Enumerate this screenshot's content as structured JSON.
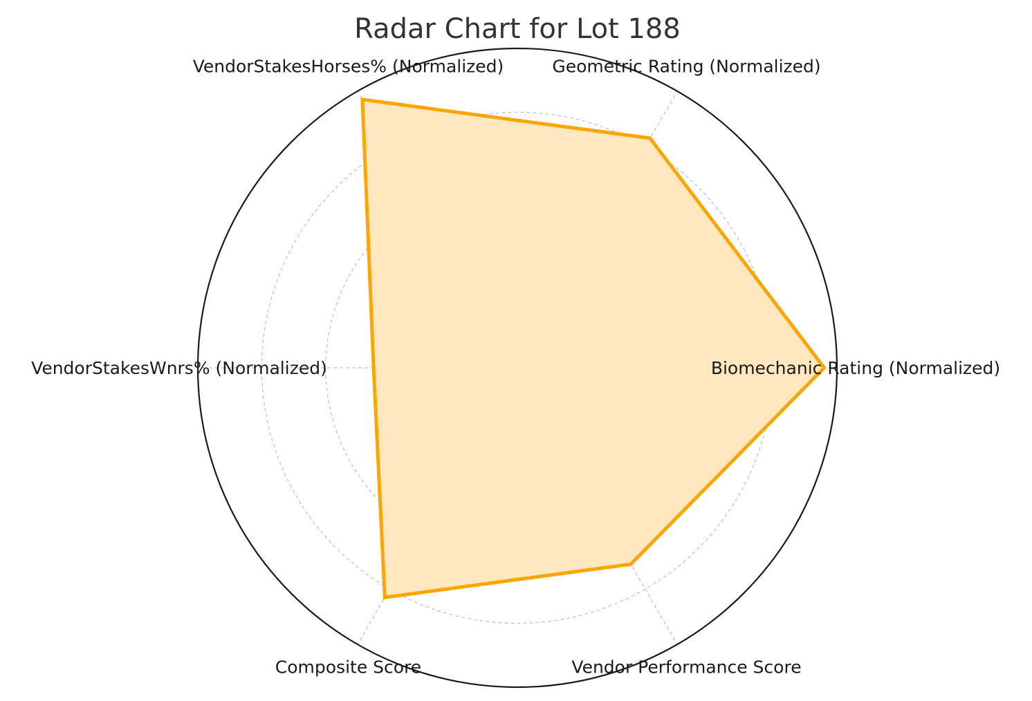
{
  "chart_data": {
    "type": "radar",
    "title": "Radar Chart for Lot 188",
    "axes": [
      "Biomechanic Rating (Normalized)",
      "Geometric Rating (Normalized)",
      "VendorStakesHorses% (Normalized)",
      "VendorStakesWnrs% (Normalized)",
      "Composite Score",
      "Vendor Performance Score"
    ],
    "series": [
      {
        "values": [
          0.96,
          0.83,
          0.97,
          0.45,
          0.83,
          0.71
        ],
        "color": "#FFA500",
        "fill_color": "#FFE7BF"
      }
    ],
    "rlim": [
      0,
      1
    ],
    "grid_rings": [
      0.2,
      0.4,
      0.6,
      0.8
    ],
    "grid": true,
    "legend": false
  }
}
